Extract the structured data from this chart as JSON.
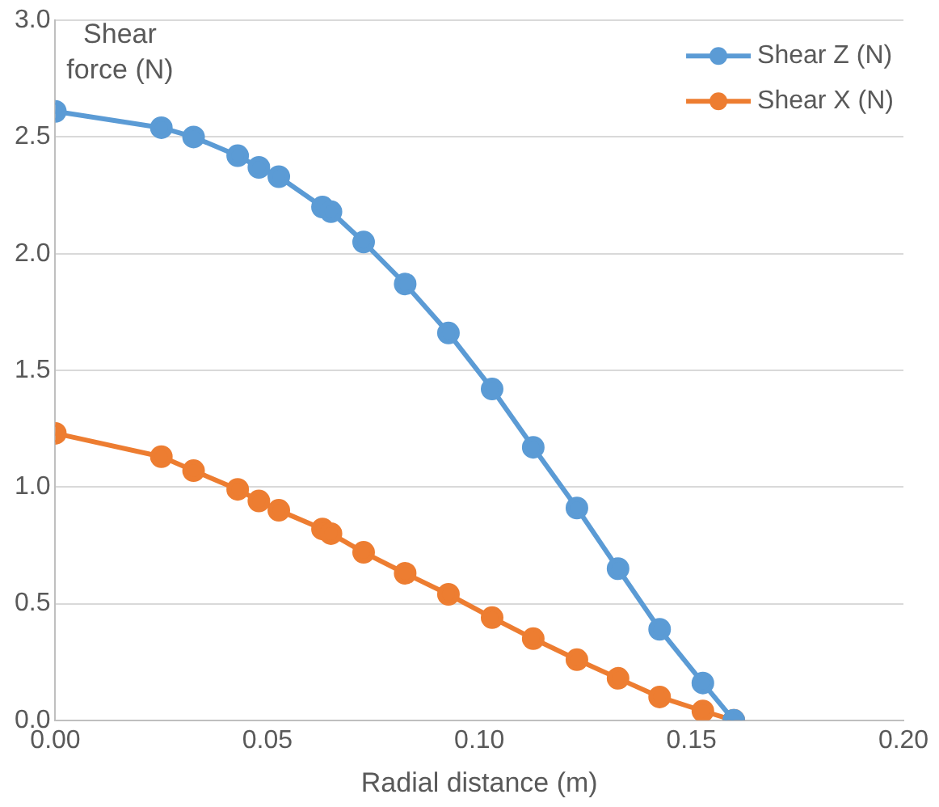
{
  "chart_data": {
    "type": "line",
    "xlabel": "Radial distance (m)",
    "ylabel": "Shear force (N)",
    "x": [
      0,
      0.025,
      0.0326,
      0.043,
      0.048,
      0.0527,
      0.063,
      0.065,
      0.0727,
      0.0825,
      0.0927,
      0.103,
      0.1127,
      0.123,
      0.1327,
      0.1425,
      0.1527,
      0.16
    ],
    "series": [
      {
        "name": "Shear Z (N)",
        "color": "#5b9bd5",
        "values": [
          2.61,
          2.54,
          2.5,
          2.42,
          2.37,
          2.33,
          2.2,
          2.18,
          2.05,
          1.87,
          1.66,
          1.42,
          1.17,
          0.91,
          0.65,
          0.39,
          0.16,
          0.0
        ]
      },
      {
        "name": "Shear X (N)",
        "color": "#ed7d31",
        "values": [
          1.23,
          1.13,
          1.07,
          0.99,
          0.94,
          0.9,
          0.82,
          0.8,
          0.72,
          0.63,
          0.54,
          0.44,
          0.35,
          0.26,
          0.18,
          0.1,
          0.04,
          0.0
        ]
      }
    ],
    "xlim": [
      0,
      0.2
    ],
    "xticks": [
      {
        "value": 0,
        "label": "0.00"
      },
      {
        "value": 0.05,
        "label": "0.05"
      },
      {
        "value": 0.1,
        "label": "0.10"
      },
      {
        "value": 0.15,
        "label": "0.15"
      },
      {
        "value": 0.2,
        "label": "0.20"
      }
    ],
    "ylim": [
      0,
      3
    ],
    "yticks": [
      {
        "value": 0,
        "label": "0.0"
      },
      {
        "value": 0.5,
        "label": "0.5"
      },
      {
        "value": 1,
        "label": "1.0"
      },
      {
        "value": 1.5,
        "label": "1.5"
      },
      {
        "value": 2,
        "label": "2.0"
      },
      {
        "value": 2.5,
        "label": "2.5"
      },
      {
        "value": 3,
        "label": "3.0"
      }
    ],
    "grid": "y",
    "legend": "top right",
    "marker": "circle",
    "line_style": "solid"
  }
}
